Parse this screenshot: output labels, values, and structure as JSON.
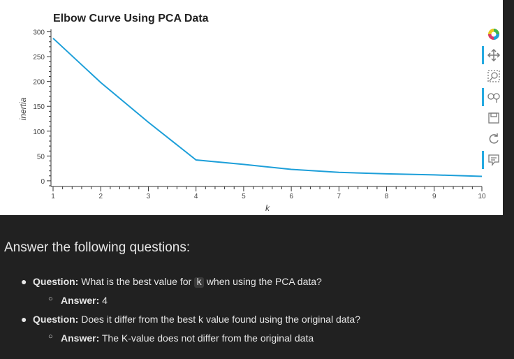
{
  "chart_data": {
    "type": "line",
    "title": "Elbow Curve Using PCA Data",
    "xlabel": "k",
    "ylabel": "inertia",
    "x": [
      1,
      2,
      3,
      4,
      5,
      6,
      7,
      8,
      9,
      10
    ],
    "y": [
      287,
      198,
      118,
      42,
      33,
      23,
      17,
      14,
      12,
      9
    ],
    "xlim": [
      1,
      10
    ],
    "ylim": [
      -10,
      305
    ],
    "xticks": [
      1,
      2,
      3,
      4,
      5,
      6,
      7,
      8,
      9,
      10
    ],
    "yticks": [
      0,
      50,
      100,
      150,
      200,
      250,
      300
    ],
    "line_color": "#1d9fd9",
    "grid": false
  },
  "toolbar": {
    "tools": [
      "bokeh-logo-icon",
      "pan-icon",
      "box-zoom-icon",
      "wheel-zoom-icon",
      "save-icon",
      "reset-icon",
      "hover-icon"
    ]
  },
  "answers": {
    "heading": "Answer the following questions:",
    "q1_label": "Question:",
    "q1_text_before": "What is the best value for",
    "q1_code": "k",
    "q1_text_after": "when using the PCA data?",
    "a1_label": "Answer:",
    "a1_text": "4",
    "q2_label": "Question:",
    "q2_text": "Does it differ from the best k value found using the original data?",
    "a2_label": "Answer:",
    "a2_text": "The K-value does not differ from the original data"
  }
}
